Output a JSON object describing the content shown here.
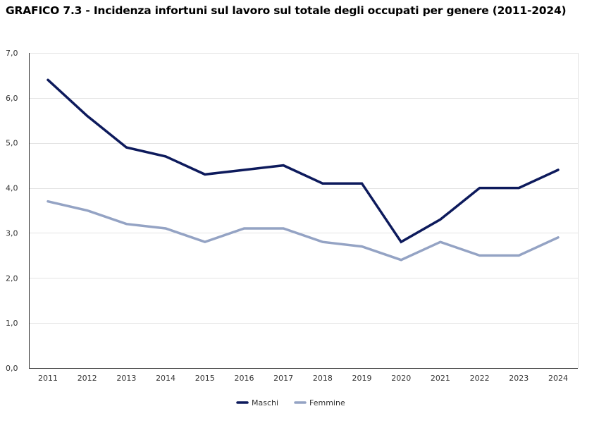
{
  "chart_data": {
    "type": "line",
    "title": "GRAFICO 7.3 - Incidenza infortuni sul lavoro sul totale degli occupati per genere (2011-2024)",
    "xlabel": "",
    "ylabel": "",
    "categories": [
      "2011",
      "2012",
      "2013",
      "2014",
      "2015",
      "2016",
      "2017",
      "2018",
      "2019",
      "2020",
      "2021",
      "2022",
      "2023",
      "2024"
    ],
    "ylim": [
      0,
      7
    ],
    "yticks": [
      "0,0",
      "1,0",
      "2,0",
      "3,0",
      "4,0",
      "5,0",
      "6,0",
      "7,0"
    ],
    "ytick_values": [
      0,
      1,
      2,
      3,
      4,
      5,
      6,
      7
    ],
    "grid": true,
    "legend_position": "bottom-center",
    "series": [
      {
        "name": "Maschi",
        "color": "#0d1a5c",
        "values": [
          6.4,
          5.6,
          4.9,
          4.7,
          4.3,
          4.4,
          4.5,
          4.1,
          4.1,
          2.8,
          3.3,
          4.0,
          4.0,
          4.4
        ]
      },
      {
        "name": "Femmine",
        "color": "#94a3c4",
        "values": [
          3.7,
          3.5,
          3.2,
          3.1,
          2.8,
          3.1,
          3.1,
          2.8,
          2.7,
          2.4,
          2.8,
          2.5,
          2.5,
          2.9
        ]
      }
    ]
  }
}
